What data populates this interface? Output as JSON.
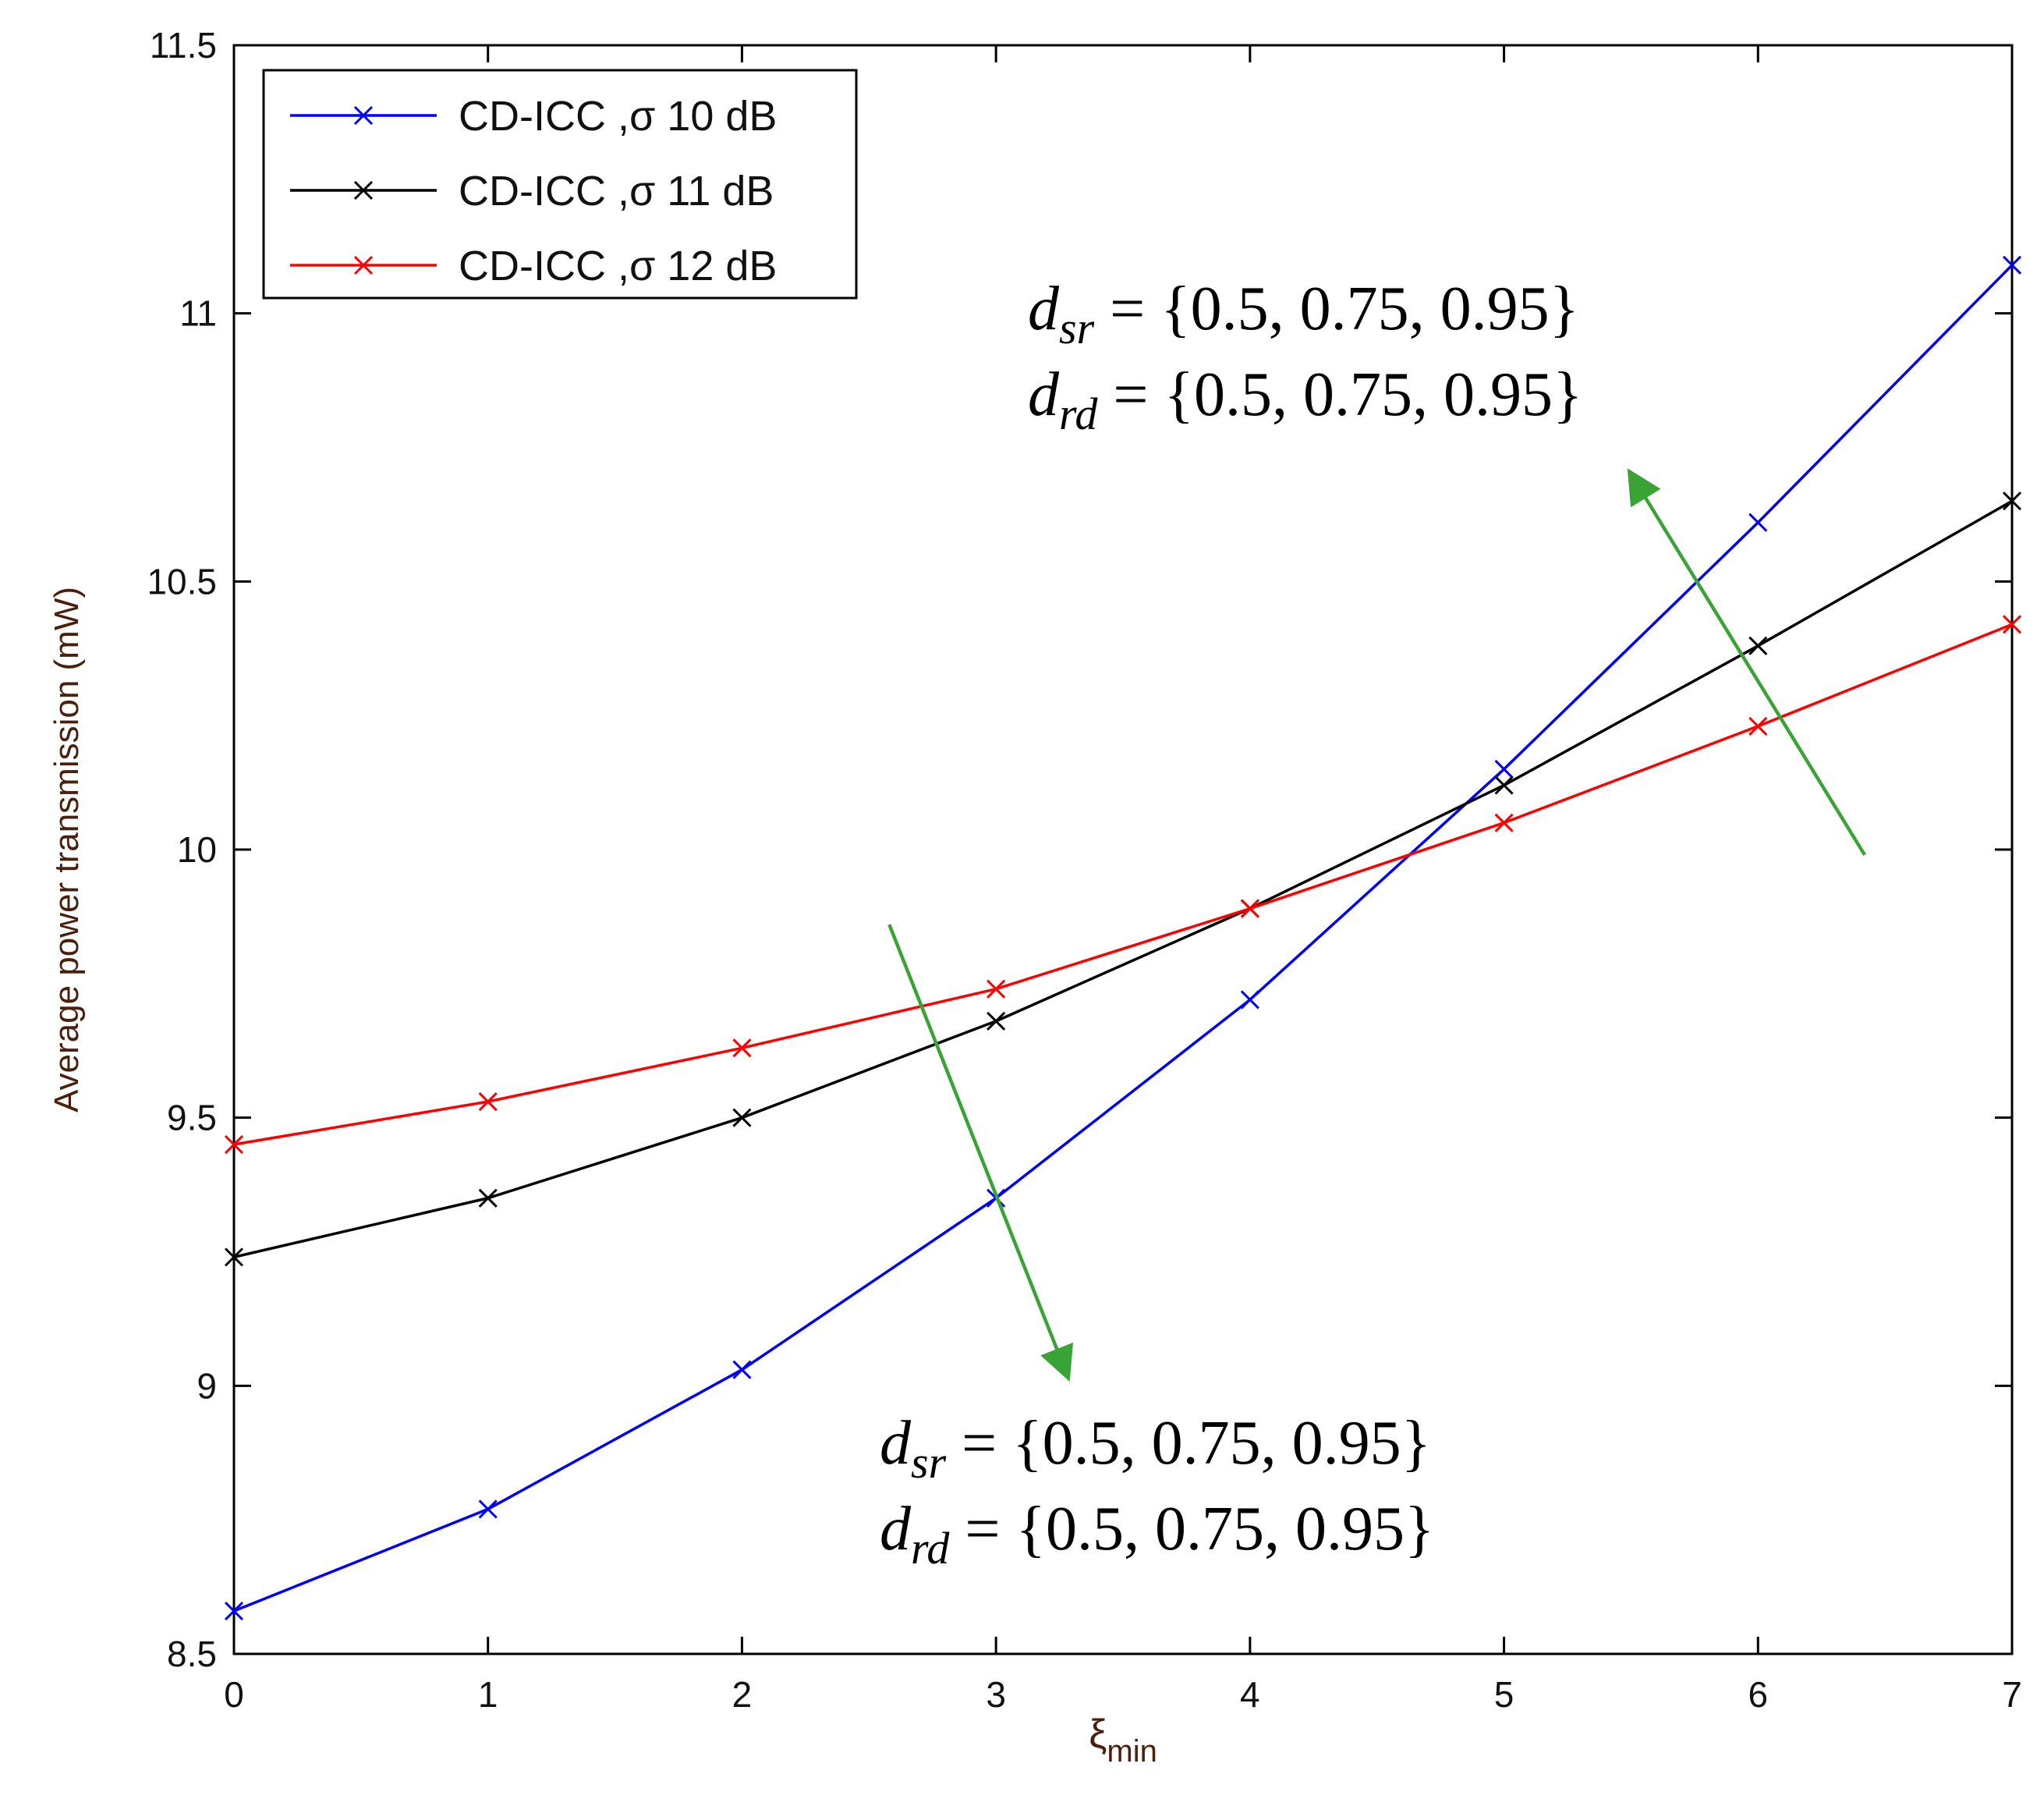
{
  "chart_data": {
    "type": "line",
    "xlabel": "ξ",
    "xlabel_sub": "min",
    "ylabel": "Average power transmission (mW)",
    "xlim": [
      0,
      7
    ],
    "ylim": [
      8.5,
      11.5
    ],
    "x_ticks": [
      "0",
      "1",
      "2",
      "3",
      "4",
      "5",
      "6",
      "7"
    ],
    "y_ticks": [
      "8.5",
      "9",
      "9.5",
      "10",
      "10.5",
      "11",
      "11.5"
    ],
    "x": [
      0,
      1,
      2,
      3,
      4,
      5,
      6,
      7
    ],
    "series": [
      {
        "name": "CD-ICC ,σ 10 dB",
        "color": "#0000ff",
        "marker": "x",
        "values": [
          8.58,
          8.77,
          9.03,
          9.35,
          9.72,
          10.15,
          10.61,
          11.09
        ]
      },
      {
        "name": "CD-ICC ,σ 11 dB",
        "color": "#000000",
        "marker": "x",
        "values": [
          9.24,
          9.35,
          9.5,
          9.68,
          9.89,
          10.12,
          10.38,
          10.65
        ]
      },
      {
        "name": "CD-ICC ,σ 12 dB",
        "color": "#ff0000",
        "marker": "x",
        "values": [
          9.45,
          9.53,
          9.63,
          9.74,
          9.89,
          10.05,
          10.23,
          10.42
        ]
      }
    ],
    "legend_position": "top-left",
    "grid": false,
    "annotations": [
      {
        "id": "upper",
        "lines": [
          {
            "var": "d",
            "sub": "sr",
            "text": " = {0.5,  0.75,  0.95}"
          },
          {
            "var": "d",
            "sub": "rd",
            "text": " = {0.5,  0.75,  0.95}"
          }
        ],
        "arrow": {
          "color": "#3aa335",
          "from": [
            6.42,
            9.99
          ],
          "to": [
            5.5,
            10.7
          ]
        }
      },
      {
        "id": "lower",
        "lines": [
          {
            "var": "d",
            "sub": "sr",
            "text": " = {0.5,  0.75,  0.95}"
          },
          {
            "var": "d",
            "sub": "rd",
            "text": " = {0.5,  0.75,  0.95}"
          }
        ],
        "arrow": {
          "color": "#3aa335",
          "from": [
            2.58,
            9.86
          ],
          "to": [
            3.28,
            9.02
          ]
        }
      }
    ]
  }
}
